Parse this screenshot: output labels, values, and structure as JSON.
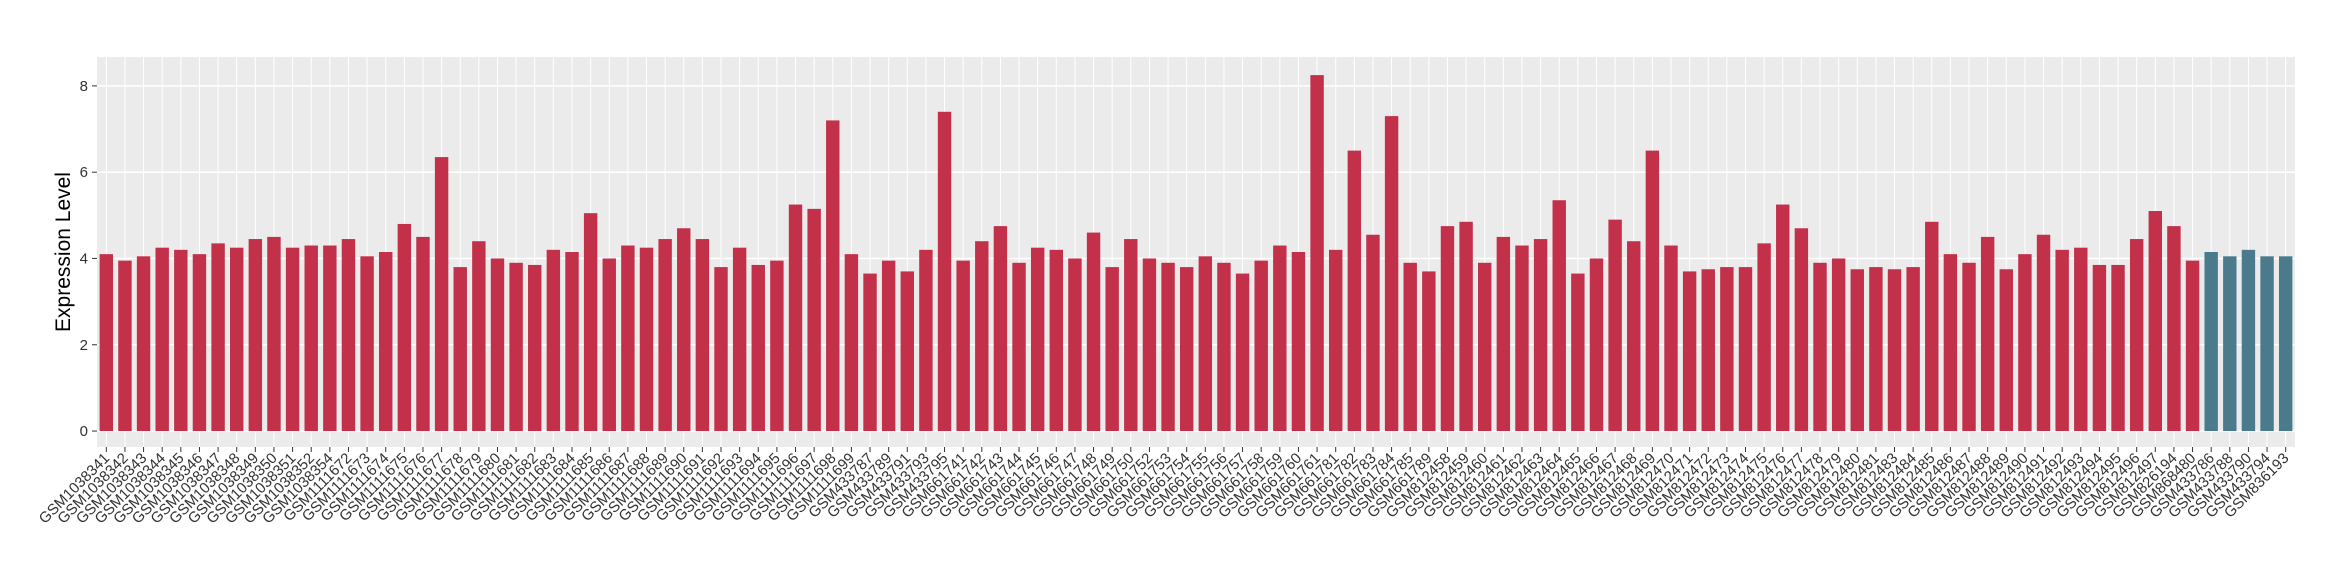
{
  "chart_data": {
    "type": "bar",
    "y_label": "Expression Level",
    "categories": [
      "GSM1038341",
      "GSM1038342",
      "GSM1038343",
      "GSM1038344",
      "GSM1038345",
      "GSM1038346",
      "GSM1038347",
      "GSM1038348",
      "GSM1038349",
      "GSM1038350",
      "GSM1038351",
      "GSM1038352",
      "GSM1038354",
      "GSM1111672",
      "GSM1111673",
      "GSM1111674",
      "GSM1111675",
      "GSM1111676",
      "GSM1111677",
      "GSM1111678",
      "GSM1111679",
      "GSM1111680",
      "GSM1111681",
      "GSM1111682",
      "GSM1111683",
      "GSM1111684",
      "GSM1111685",
      "GSM1111686",
      "GSM1111687",
      "GSM1111688",
      "GSM1111689",
      "GSM1111690",
      "GSM1111691",
      "GSM1111692",
      "GSM1111693",
      "GSM1111694",
      "GSM1111695",
      "GSM1111696",
      "GSM1111697",
      "GSM1111698",
      "GSM1111699",
      "GSM433787",
      "GSM433789",
      "GSM433791",
      "GSM433793",
      "GSM433795",
      "GSM661741",
      "GSM661742",
      "GSM661743",
      "GSM661744",
      "GSM661745",
      "GSM661746",
      "GSM661747",
      "GSM661748",
      "GSM661749",
      "GSM661750",
      "GSM661752",
      "GSM661753",
      "GSM661754",
      "GSM661755",
      "GSM661756",
      "GSM661757",
      "GSM661758",
      "GSM661759",
      "GSM661760",
      "GSM661761",
      "GSM661781",
      "GSM661782",
      "GSM661783",
      "GSM661784",
      "GSM661785",
      "GSM661789",
      "GSM812458",
      "GSM812459",
      "GSM812460",
      "GSM812461",
      "GSM812462",
      "GSM812463",
      "GSM812464",
      "GSM812465",
      "GSM812466",
      "GSM812467",
      "GSM812468",
      "GSM812469",
      "GSM812470",
      "GSM812471",
      "GSM812472",
      "GSM812473",
      "GSM812474",
      "GSM812475",
      "GSM812476",
      "GSM812477",
      "GSM812478",
      "GSM812479",
      "GSM812480",
      "GSM812481",
      "GSM812483",
      "GSM812484",
      "GSM812485",
      "GSM812486",
      "GSM812487",
      "GSM812488",
      "GSM812489",
      "GSM812490",
      "GSM812491",
      "GSM812492",
      "GSM812493",
      "GSM812494",
      "GSM812495",
      "GSM812496",
      "GSM812497",
      "GSM826194",
      "GSM868480",
      "GSM433786",
      "GSM433788",
      "GSM433790",
      "GSM433794",
      "GSM836193"
    ],
    "values": [
      4.1,
      3.95,
      4.05,
      4.25,
      4.2,
      4.1,
      4.35,
      4.25,
      4.45,
      4.5,
      4.25,
      4.3,
      4.3,
      4.45,
      4.05,
      4.15,
      4.8,
      4.5,
      6.35,
      3.8,
      4.4,
      4.0,
      3.9,
      3.85,
      4.2,
      4.15,
      5.05,
      4.0,
      4.3,
      4.25,
      4.45,
      4.7,
      4.45,
      3.8,
      4.25,
      3.85,
      3.95,
      5.25,
      5.15,
      7.2,
      4.1,
      3.65,
      3.95,
      3.7,
      4.2,
      7.4,
      3.95,
      4.4,
      4.75,
      3.9,
      4.25,
      4.2,
      4.0,
      4.6,
      3.8,
      4.45,
      4.0,
      3.9,
      3.8,
      4.05,
      3.9,
      3.65,
      3.95,
      4.3,
      4.15,
      8.25,
      4.2,
      6.5,
      4.55,
      7.3,
      3.9,
      3.7,
      4.75,
      4.85,
      3.9,
      4.5,
      4.3,
      4.45,
      5.35,
      3.65,
      4.0,
      4.9,
      4.4,
      6.5,
      4.3,
      3.7,
      3.75,
      3.8,
      3.8,
      4.35,
      5.25,
      4.7,
      3.9,
      4.0,
      3.75,
      3.8,
      3.75,
      3.8,
      4.85,
      4.1,
      3.9,
      4.5,
      3.75,
      4.1,
      4.55,
      4.2,
      4.25,
      3.85,
      3.85,
      4.45,
      5.1,
      4.75,
      3.95,
      4.15,
      4.05,
      4.2,
      4.05,
      4.05
    ],
    "bar_colors": [
      "#c2304a",
      "#c2304a",
      "#c2304a",
      "#c2304a",
      "#c2304a",
      "#c2304a",
      "#c2304a",
      "#c2304a",
      "#c2304a",
      "#c2304a",
      "#c2304a",
      "#c2304a",
      "#c2304a",
      "#c2304a",
      "#c2304a",
      "#c2304a",
      "#c2304a",
      "#c2304a",
      "#c2304a",
      "#c2304a",
      "#c2304a",
      "#c2304a",
      "#c2304a",
      "#c2304a",
      "#c2304a",
      "#c2304a",
      "#c2304a",
      "#c2304a",
      "#c2304a",
      "#c2304a",
      "#c2304a",
      "#c2304a",
      "#c2304a",
      "#c2304a",
      "#c2304a",
      "#c2304a",
      "#c2304a",
      "#c2304a",
      "#c2304a",
      "#c2304a",
      "#c2304a",
      "#c2304a",
      "#c2304a",
      "#c2304a",
      "#c2304a",
      "#c2304a",
      "#c2304a",
      "#c2304a",
      "#c2304a",
      "#c2304a",
      "#c2304a",
      "#c2304a",
      "#c2304a",
      "#c2304a",
      "#c2304a",
      "#c2304a",
      "#c2304a",
      "#c2304a",
      "#c2304a",
      "#c2304a",
      "#c2304a",
      "#c2304a",
      "#c2304a",
      "#c2304a",
      "#c2304a",
      "#c2304a",
      "#c2304a",
      "#c2304a",
      "#c2304a",
      "#c2304a",
      "#c2304a",
      "#c2304a",
      "#c2304a",
      "#c2304a",
      "#c2304a",
      "#c2304a",
      "#c2304a",
      "#c2304a",
      "#c2304a",
      "#c2304a",
      "#c2304a",
      "#c2304a",
      "#c2304a",
      "#c2304a",
      "#c2304a",
      "#c2304a",
      "#c2304a",
      "#c2304a",
      "#c2304a",
      "#c2304a",
      "#c2304a",
      "#c2304a",
      "#c2304a",
      "#c2304a",
      "#c2304a",
      "#c2304a",
      "#c2304a",
      "#c2304a",
      "#c2304a",
      "#c2304a",
      "#c2304a",
      "#c2304a",
      "#c2304a",
      "#c2304a",
      "#c2304a",
      "#c2304a",
      "#c2304a",
      "#c2304a",
      "#c2304a",
      "#c2304a",
      "#c2304a",
      "#c2304a",
      "#c2304a",
      "#4a7a8c",
      "#4a7a8c",
      "#4a7a8c",
      "#4a7a8c",
      "#4a7a8c"
    ],
    "ylim": [
      -0.37,
      8.67
    ],
    "yticks": [
      0,
      2,
      4,
      6,
      8
    ],
    "grid": true
  }
}
